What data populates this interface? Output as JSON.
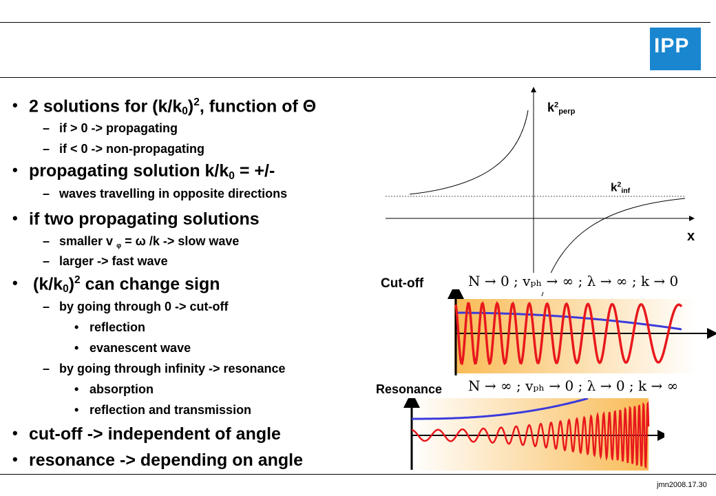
{
  "logo": {
    "text": "IPP",
    "color": "#1a86d0"
  },
  "bullets": {
    "b1": {
      "pre": "2 solutions for (k/k",
      "sub": "0",
      "mid": ")",
      "sup": "2",
      "post": ", function of Θ"
    },
    "b1_1": "if > 0 -> propagating",
    "b1_2": "if < 0 -> non-propagating",
    "b2": {
      "pre": "propagating solution k/k",
      "sub": "0",
      "post": " = +/-"
    },
    "b2_1": "waves travelling in opposite directions",
    "b3": "if two propagating solutions",
    "b3_1": {
      "pre": "smaller v ",
      "sub": "φ",
      "post": " = ω /k -> slow wave"
    },
    "b3_2": "larger -> fast wave",
    "b4": {
      "pre": "(k/k",
      "sub": "0",
      "mid": ")",
      "sup": "2",
      "post": " can change sign"
    },
    "b4_1": "by going through 0  -> cut-off",
    "b4_1_1": "reflection",
    "b4_1_2": "evanescent wave",
    "b4_2": "by going through  infinity -> resonance",
    "b4_2_1": "absorption",
    "b4_2_2": "reflection and transmission",
    "b5": "cut-off -> independent of angle",
    "b6": "resonance -> depending on angle"
  },
  "graph": {
    "k2perp": {
      "base": "k",
      "sup": "2",
      "sub": "perp"
    },
    "k2inf": {
      "base": "k",
      "sup": "2",
      "sub": "inf"
    },
    "x_label": "x"
  },
  "cutoff": {
    "label": "Cut-off",
    "formula": "N → 0 ;   vₚₕ → ∞ ;   λ → ∞ ;   k → 0"
  },
  "resonance": {
    "label": "Resonance",
    "formula": "N → ∞ ;   vₚₕ → 0 ;   λ → 0 ;   k → ∞"
  },
  "footer": "jmn2008.17.30",
  "colors": {
    "wave": "#e8181c",
    "envelope": "#3a3adc",
    "gradient_start": "#f9bb55",
    "gradient_end": "#ffffff"
  }
}
